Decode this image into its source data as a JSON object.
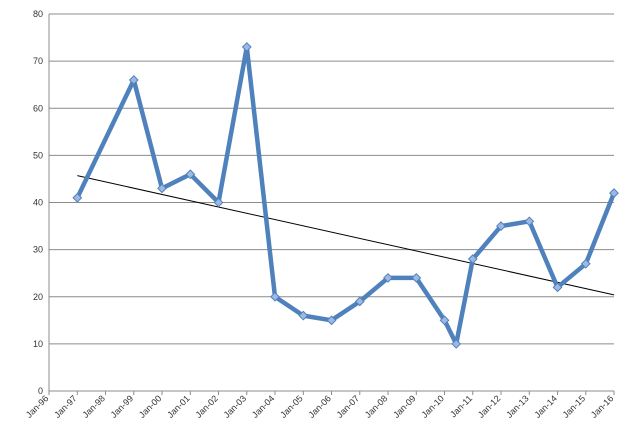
{
  "chart_data": {
    "type": "line",
    "title": "",
    "xlabel": "",
    "ylabel": "",
    "ylim": [
      0,
      80
    ],
    "yticks": [
      0,
      10,
      20,
      30,
      40,
      50,
      60,
      70,
      80
    ],
    "xticks": [
      "Jan-96",
      "Jan-97",
      "Jan-98",
      "Jan-99",
      "Jan-00",
      "Jan-01",
      "Jan-02",
      "Jan-03",
      "Jan-04",
      "Jan-05",
      "Jan-06",
      "Jan-07",
      "Jan-08",
      "Jan-09",
      "Jan-10",
      "Jan-11",
      "Jan-12",
      "Jan-13",
      "Jan-14",
      "Jan-15",
      "Jan-16"
    ],
    "grid": "horizontal",
    "legend": "none",
    "series": [
      {
        "color": "#4F81BD",
        "points": [
          {
            "x": "1997-01-01",
            "y": 41
          },
          {
            "x": "1999-01-01",
            "y": 66
          },
          {
            "x": "2000-01-01",
            "y": 43
          },
          {
            "x": "2001-01-01",
            "y": 46
          },
          {
            "x": "2002-01-01",
            "y": 40
          },
          {
            "x": "2003-01-01",
            "y": 73
          },
          {
            "x": "2004-01-01",
            "y": 20
          },
          {
            "x": "2005-01-01",
            "y": 16
          },
          {
            "x": "2006-01-01",
            "y": 15
          },
          {
            "x": "2007-01-01",
            "y": 19
          },
          {
            "x": "2008-01-01",
            "y": 24
          },
          {
            "x": "2009-01-01",
            "y": 24
          },
          {
            "x": "2010-01-01",
            "y": 15
          },
          {
            "x": "2010-06-01",
            "y": 10
          },
          {
            "x": "2011-01-01",
            "y": 28
          },
          {
            "x": "2012-01-01",
            "y": 35
          },
          {
            "x": "2013-01-01",
            "y": 36
          },
          {
            "x": "2014-01-01",
            "y": 22
          },
          {
            "x": "2015-01-01",
            "y": 27
          },
          {
            "x": "2016-01-01",
            "y": 42
          }
        ]
      }
    ],
    "trendline": {
      "type": "linear",
      "color": "#000000",
      "start": {
        "x": "1997-01-01",
        "y": 45.7
      },
      "end": {
        "x": "2016-01-01",
        "y": 20.4
      }
    }
  }
}
